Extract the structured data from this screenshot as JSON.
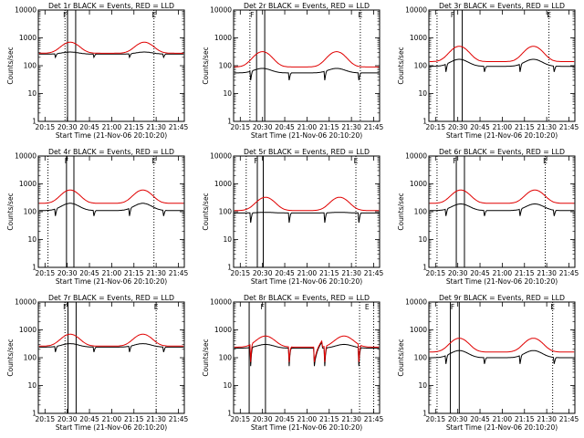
{
  "colors": {
    "events": "#000000",
    "lld": "#e00000",
    "background": "#ffffff",
    "axes": "#000000"
  },
  "common": {
    "xlabel": "Start Time (21-Nov-06 20:10:20)",
    "ylabel": "Counts/sec",
    "x_ticks": [
      "20:15",
      "20:30",
      "20:45",
      "21:00",
      "21:15",
      "21:30",
      "21:45"
    ],
    "x_tick_minutes": [
      15,
      30,
      45,
      60,
      75,
      90,
      105
    ],
    "xlim_minutes": [
      10.5,
      109
    ],
    "y_ticks": [
      "1",
      "10",
      "100",
      "1000",
      "10000"
    ],
    "y_tick_values": [
      1,
      10,
      100,
      1000,
      10000
    ],
    "ylim": [
      1,
      10000
    ],
    "ylog": true,
    "flag_letters": [
      "F",
      "E"
    ]
  },
  "chart_data": [
    {
      "type": "line",
      "title": "Det 1r BLACK = Events, RED = LLD",
      "solid_lines_min": [
        30.2,
        35.7
      ],
      "dotted_lines_min": [
        28.5,
        88.5
      ],
      "flag_markers": [
        {
          "letter": "F",
          "x_min": 28.5
        },
        {
          "letter": "E",
          "x_min": 88.5
        }
      ],
      "series": [
        {
          "name": "Events",
          "base": 260,
          "peak": 310,
          "dip": 200
        },
        {
          "name": "LLD",
          "base": 280,
          "peak": 700,
          "dip": 0
        }
      ],
      "peaks_min": [
        32,
        82
      ]
    },
    {
      "type": "line",
      "title": "Det 2r BLACK = Events, RED = LLD",
      "solid_lines_min": [
        26.0,
        31.5
      ],
      "dotted_lines_min": [
        21.5,
        96.0
      ],
      "flag_markers": [
        {
          "letter": "F",
          "x_min": 23.0
        },
        {
          "letter": "E",
          "x_min": 96.0
        }
      ],
      "series": [
        {
          "name": "Events",
          "base": 55,
          "peak": 80,
          "dip": 30
        },
        {
          "name": "LLD",
          "base": 90,
          "peak": 320,
          "dip": 0
        }
      ],
      "peaks_min": [
        30,
        80
      ]
    },
    {
      "type": "line",
      "title": "Det 3r BLACK = Events, RED = LLD",
      "solid_lines_min": [
        27.5,
        33.0
      ],
      "dotted_lines_min": [
        16.0,
        91.5
      ],
      "flag_markers": [
        {
          "letter": "F",
          "x_min": 26.5
        },
        {
          "letter": "E",
          "x_min": 91.5
        }
      ],
      "series": [
        {
          "name": "Events",
          "base": 95,
          "peak": 170,
          "dip": 60
        },
        {
          "name": "LLD",
          "base": 140,
          "peak": 500,
          "dip": 0
        }
      ],
      "peaks_min": [
        31,
        81
      ]
    },
    {
      "type": "line",
      "title": "Det 4r BLACK = Events, RED = LLD",
      "solid_lines_min": [
        29.5,
        34.5
      ],
      "dotted_lines_min": [
        17.0,
        88.5
      ],
      "flag_markers": [
        {
          "letter": "F",
          "x_min": 29.5
        },
        {
          "letter": "E",
          "x_min": 88.5
        }
      ],
      "series": [
        {
          "name": "Events",
          "base": 110,
          "peak": 200,
          "dip": 70
        },
        {
          "name": "LLD",
          "base": 200,
          "peak": 600,
          "dip": 0
        }
      ],
      "peaks_min": [
        32,
        81
      ]
    },
    {
      "type": "line",
      "title": "Det 5r BLACK = Events, RED = LLD",
      "solid_lines_min": [
        26.5,
        30.5
      ],
      "dotted_lines_min": [
        19.0,
        93.0
      ],
      "flag_markers": [
        {
          "letter": "F",
          "x_min": 25.5
        },
        {
          "letter": "E",
          "x_min": 93.0
        }
      ],
      "series": [
        {
          "name": "Events",
          "base": 90,
          "peak": 95,
          "dip": 40
        },
        {
          "name": "LLD",
          "base": 110,
          "peak": 330,
          "dip": 0
        }
      ],
      "peaks_min": [
        32,
        82
      ]
    },
    {
      "type": "line",
      "title": "Det 6r BLACK = Events, RED = LLD",
      "solid_lines_min": [
        29.0,
        34.5
      ],
      "dotted_lines_min": [
        16.0,
        89.0
      ],
      "flag_markers": [
        {
          "letter": "F",
          "x_min": 28.0
        },
        {
          "letter": "E",
          "x_min": 89.0
        }
      ],
      "series": [
        {
          "name": "Events",
          "base": 110,
          "peak": 190,
          "dip": 70
        },
        {
          "name": "LLD",
          "base": 200,
          "peak": 600,
          "dip": 0
        }
      ],
      "peaks_min": [
        32,
        82
      ]
    },
    {
      "type": "line",
      "title": "Det 7r BLACK = Events, RED = LLD",
      "solid_lines_min": [
        30.5,
        36.0
      ],
      "dotted_lines_min": [
        28.5,
        90.0
      ],
      "flag_markers": [
        {
          "letter": "F",
          "x_min": 28.5
        },
        {
          "letter": "E",
          "x_min": 90.0
        }
      ],
      "series": [
        {
          "name": "Events",
          "base": 240,
          "peak": 320,
          "dip": 160
        },
        {
          "name": "LLD",
          "base": 260,
          "peak": 700,
          "dip": 0
        }
      ],
      "peaks_min": [
        32,
        81
      ]
    },
    {
      "type": "line",
      "title": "Det 8r BLACK = Events, RED = LLD",
      "solid_lines_min": [
        21.0,
        32.0
      ],
      "dotted_lines_min": [
        95.5,
        105.0
      ],
      "flag_markers": [
        {
          "letter": "F",
          "x_min": 30.0
        },
        {
          "letter": "E",
          "x_min": 100.5
        }
      ],
      "series": [
        {
          "name": "Events",
          "base": 220,
          "peak": 300,
          "dip": 50
        },
        {
          "name": "LLD",
          "base": 240,
          "peak": 600,
          "dip": 70
        }
      ],
      "peaks_min": [
        32,
        85
      ],
      "anomaly_min": [
        65,
        70
      ]
    },
    {
      "type": "line",
      "title": "Det 9r BLACK = Events, RED = LLD",
      "solid_lines_min": [
        25.0,
        31.0
      ],
      "dotted_lines_min": [
        16.0,
        94.0
      ],
      "flag_markers": [
        {
          "letter": "F",
          "x_min": 26.5
        },
        {
          "letter": "E",
          "x_min": 94.0
        }
      ],
      "series": [
        {
          "name": "Events",
          "base": 100,
          "peak": 180,
          "dip": 60
        },
        {
          "name": "LLD",
          "base": 160,
          "peak": 500,
          "dip": 0
        }
      ],
      "peaks_min": [
        31,
        81
      ]
    }
  ]
}
